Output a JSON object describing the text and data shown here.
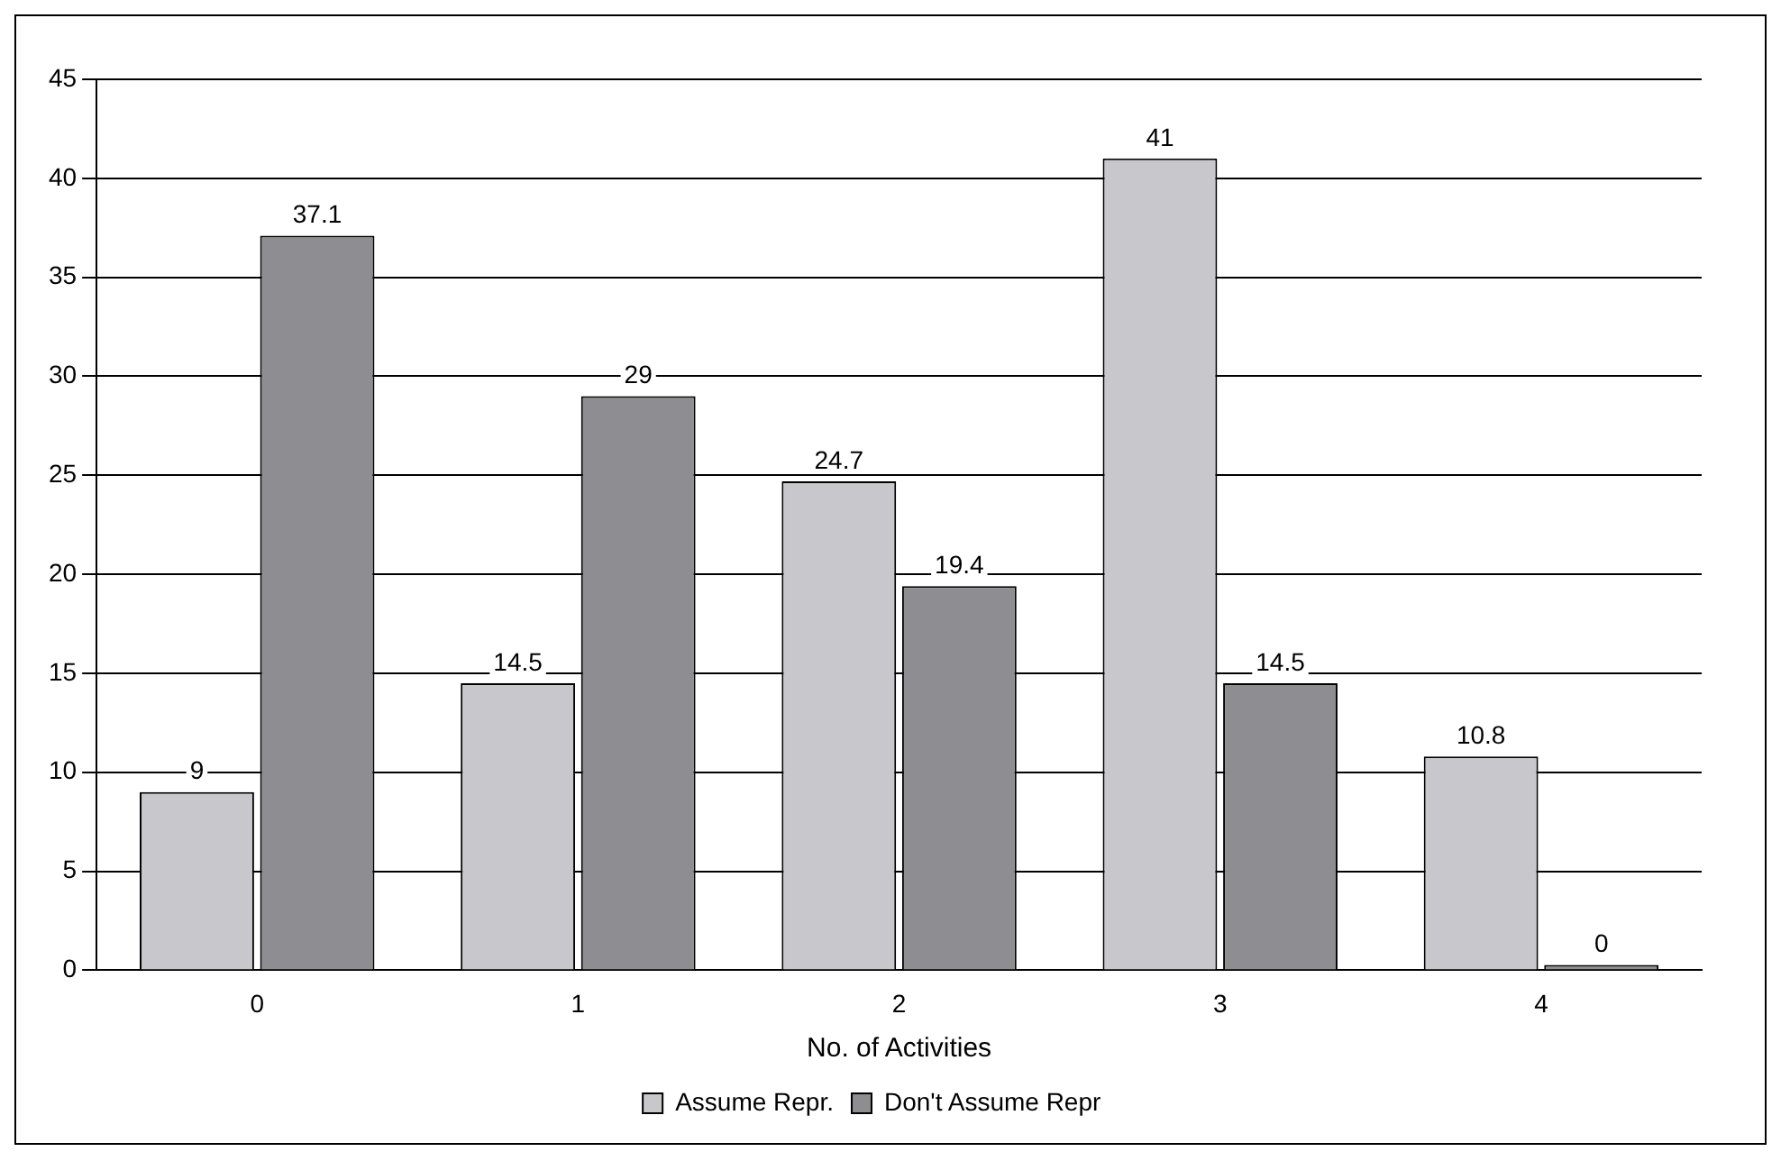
{
  "chart_data": {
    "type": "bar",
    "xlabel": "No. of Activities",
    "categories": [
      "0",
      "1",
      "2",
      "3",
      "4"
    ],
    "series": [
      {
        "name": "Assume Repr.",
        "color": "#c8c8cc",
        "values": [
          9,
          14.5,
          24.7,
          41,
          10.8
        ]
      },
      {
        "name": "Don't Assume Repr",
        "color": "#8e8e92",
        "values": [
          37.1,
          29,
          19.4,
          14.5,
          0
        ]
      }
    ],
    "ylim": [
      0,
      45
    ],
    "yticks": [
      0,
      5,
      10,
      15,
      20,
      25,
      30,
      35,
      40,
      45
    ],
    "grid": "y",
    "legend": "bottom",
    "data_labels": true
  }
}
